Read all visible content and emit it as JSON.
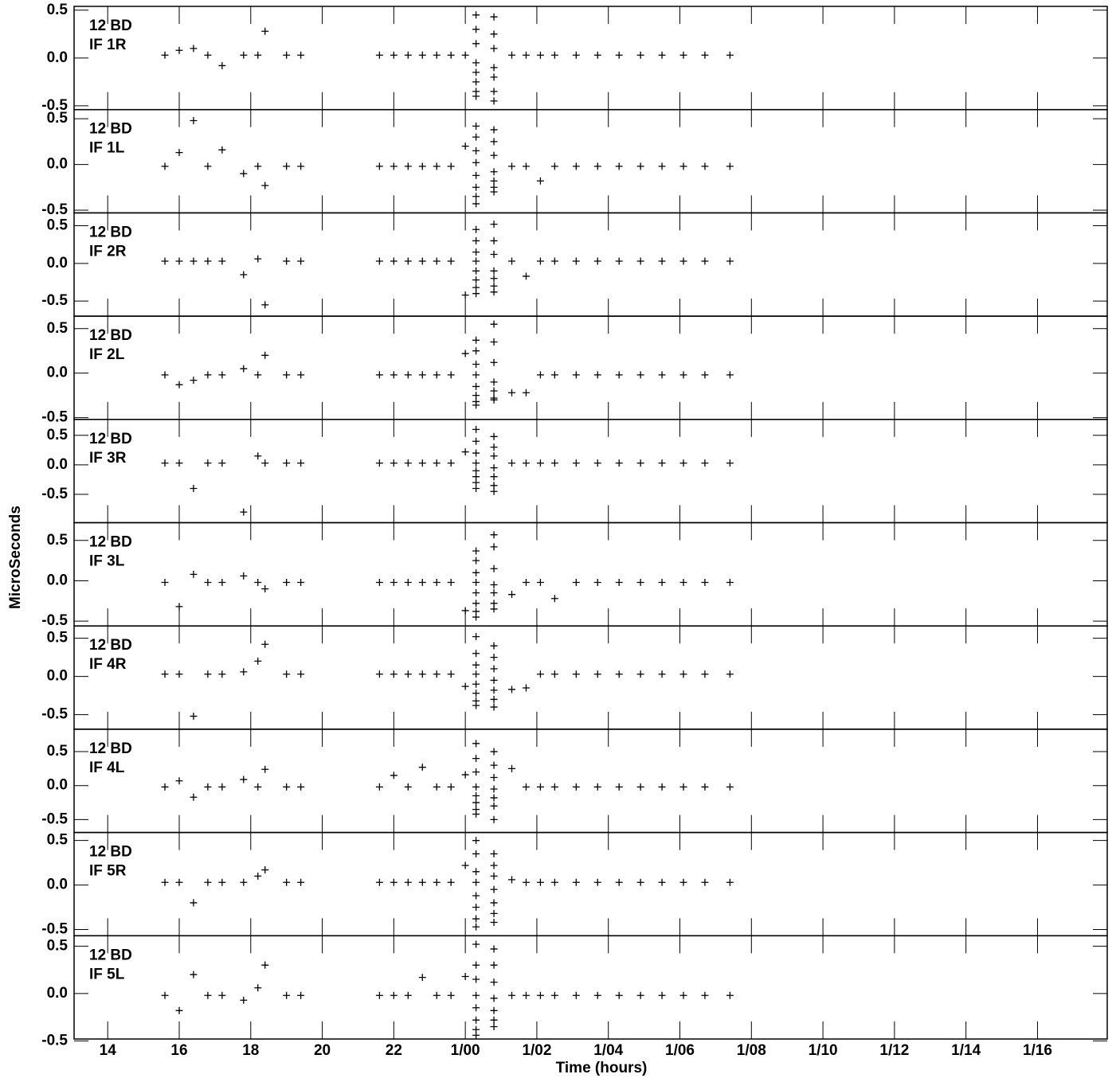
{
  "chart_data": {
    "type": "scatter",
    "xlabel": "Time (hours)",
    "ylabel": "MicroSeconds",
    "color": "#000000",
    "xlim": [
      13.06,
      41.95
    ],
    "xticks": [
      {
        "value": 14,
        "label": "14"
      },
      {
        "value": 16,
        "label": "16"
      },
      {
        "value": 18,
        "label": "18"
      },
      {
        "value": 20,
        "label": "20"
      },
      {
        "value": 22,
        "label": "22"
      },
      {
        "value": 24,
        "label": "1/00"
      },
      {
        "value": 26,
        "label": "1/02"
      },
      {
        "value": 28,
        "label": "1/04"
      },
      {
        "value": 30,
        "label": "1/06"
      },
      {
        "value": 32,
        "label": "1/08"
      },
      {
        "value": 34,
        "label": "1/10"
      },
      {
        "value": 36,
        "label": "1/12"
      },
      {
        "value": 38,
        "label": "1/14"
      },
      {
        "value": 40,
        "label": "1/16"
      }
    ],
    "panels": [
      {
        "title": "12 BD",
        "subtitle": "IF 1R",
        "ylim": [
          -0.54,
          0.54
        ],
        "yticks": [
          -0.5,
          {
            "value": 0,
            "label": "0.0"
          },
          0.5
        ],
        "x": [
          15.6,
          16.0,
          16.4,
          16.8,
          17.2,
          17.8,
          18.2,
          18.4,
          19.0,
          19.4,
          21.6,
          22.0,
          22.4,
          22.8,
          23.2,
          23.6,
          24.0,
          24.3,
          24.3,
          24.3,
          24.3,
          24.3,
          24.3,
          24.3,
          24.3,
          24.8,
          24.8,
          24.8,
          24.8,
          24.8,
          24.8,
          24.8,
          25.3,
          25.7,
          26.1,
          26.5,
          27.1,
          27.7,
          28.3,
          28.9,
          29.5,
          30.1,
          30.7,
          31.4
        ],
        "values": [
          0.03,
          0.08,
          0.1,
          0.03,
          -0.08,
          0.03,
          0.03,
          0.28,
          0.03,
          0.03,
          0.03,
          0.03,
          0.03,
          0.03,
          0.03,
          0.03,
          0.03,
          0.45,
          0.3,
          0.15,
          -0.05,
          -0.15,
          -0.25,
          -0.35,
          -0.4,
          0.43,
          0.25,
          0.1,
          -0.1,
          -0.2,
          -0.35,
          -0.45,
          0.03,
          0.03,
          0.03,
          0.03,
          0.03,
          0.03,
          0.03,
          0.03,
          0.03,
          0.03,
          0.03,
          0.03
        ]
      },
      {
        "title": "12 BD",
        "subtitle": "IF 1L",
        "ylim": [
          -0.53,
          0.6
        ],
        "yticks": [
          -0.5,
          {
            "value": 0,
            "label": "0.0"
          },
          0.5
        ],
        "x": [
          15.6,
          16.0,
          16.4,
          16.8,
          17.2,
          17.8,
          18.2,
          18.4,
          19.0,
          19.4,
          21.6,
          22.0,
          22.4,
          22.8,
          23.2,
          23.6,
          24.0,
          24.3,
          24.3,
          24.3,
          24.3,
          24.3,
          24.3,
          24.3,
          24.3,
          24.8,
          24.8,
          24.8,
          24.8,
          24.8,
          24.8,
          24.8,
          25.3,
          25.7,
          26.1,
          26.5,
          27.1,
          27.7,
          28.3,
          28.9,
          29.5,
          30.1,
          30.7,
          31.4
        ],
        "values": [
          -0.02,
          0.13,
          0.48,
          -0.02,
          0.16,
          -0.1,
          -0.02,
          -0.23,
          -0.02,
          -0.02,
          -0.02,
          -0.02,
          -0.02,
          -0.02,
          -0.02,
          -0.02,
          0.2,
          0.42,
          0.3,
          0.15,
          0.02,
          -0.12,
          -0.25,
          -0.35,
          -0.43,
          0.38,
          0.25,
          0.1,
          -0.08,
          -0.18,
          -0.25,
          -0.3,
          -0.02,
          -0.02,
          -0.18,
          -0.02,
          -0.02,
          -0.02,
          -0.02,
          -0.02,
          -0.02,
          -0.02,
          -0.02,
          -0.02
        ]
      },
      {
        "title": "12 BD",
        "subtitle": "IF 2R",
        "ylim": [
          -0.7,
          0.67
        ],
        "yticks": [
          -0.5,
          {
            "value": 0,
            "label": "0.0"
          },
          0.5
        ],
        "x": [
          15.6,
          16.0,
          16.4,
          16.8,
          17.2,
          17.8,
          18.2,
          18.4,
          19.0,
          19.4,
          21.6,
          22.0,
          22.4,
          22.8,
          23.2,
          23.6,
          24.0,
          24.3,
          24.3,
          24.3,
          24.3,
          24.3,
          24.3,
          24.3,
          24.3,
          24.8,
          24.8,
          24.8,
          24.8,
          24.8,
          24.8,
          24.8,
          25.3,
          25.7,
          26.1,
          26.5,
          27.1,
          27.7,
          28.3,
          28.9,
          29.5,
          30.1,
          30.7,
          31.4
        ],
        "values": [
          0.03,
          0.03,
          0.03,
          0.03,
          0.03,
          -0.15,
          0.06,
          -0.55,
          0.03,
          0.03,
          0.03,
          0.03,
          0.03,
          0.03,
          0.03,
          0.03,
          -0.42,
          0.45,
          0.3,
          0.15,
          0.03,
          -0.1,
          -0.22,
          -0.32,
          -0.4,
          0.52,
          0.3,
          0.12,
          -0.1,
          -0.2,
          -0.3,
          -0.38,
          0.03,
          -0.17,
          0.03,
          0.03,
          0.03,
          0.03,
          0.03,
          0.03,
          0.03,
          0.03,
          0.03,
          0.03
        ]
      },
      {
        "title": "12 BD",
        "subtitle": "IF 2L",
        "ylim": [
          -0.52,
          0.64
        ],
        "yticks": [
          -0.5,
          {
            "value": 0,
            "label": "0.0"
          },
          0.5
        ],
        "x": [
          15.6,
          16.0,
          16.4,
          16.8,
          17.2,
          17.8,
          18.2,
          18.4,
          19.0,
          19.4,
          21.6,
          22.0,
          22.4,
          22.8,
          23.2,
          23.6,
          24.0,
          24.3,
          24.3,
          24.3,
          24.3,
          24.3,
          24.3,
          24.3,
          24.3,
          24.8,
          24.8,
          24.8,
          24.8,
          24.8,
          24.8,
          24.8,
          25.3,
          25.7,
          26.1,
          26.5,
          27.1,
          27.7,
          28.3,
          28.9,
          29.5,
          30.1,
          30.7,
          31.4
        ],
        "values": [
          -0.02,
          -0.13,
          -0.08,
          -0.02,
          -0.02,
          0.05,
          -0.02,
          0.2,
          -0.02,
          -0.02,
          -0.02,
          -0.02,
          -0.02,
          -0.02,
          -0.02,
          -0.02,
          0.22,
          0.37,
          0.25,
          0.1,
          -0.02,
          -0.15,
          -0.25,
          -0.32,
          -0.36,
          0.55,
          0.35,
          0.12,
          -0.1,
          -0.2,
          -0.28,
          -0.3,
          -0.22,
          -0.22,
          -0.02,
          -0.02,
          -0.02,
          -0.02,
          -0.02,
          -0.02,
          -0.02,
          -0.02,
          -0.02,
          -0.02
        ]
      },
      {
        "title": "12 BD",
        "subtitle": "IF 3R",
        "ylim": [
          -0.98,
          0.77
        ],
        "yticks": [
          -0.5,
          {
            "value": 0,
            "label": "0.0"
          },
          0.5
        ],
        "x": [
          15.6,
          16.0,
          16.4,
          16.8,
          17.2,
          17.8,
          18.2,
          18.4,
          19.0,
          19.4,
          21.6,
          22.0,
          22.4,
          22.8,
          23.2,
          23.6,
          24.0,
          24.3,
          24.3,
          24.3,
          24.3,
          24.3,
          24.3,
          24.3,
          24.3,
          24.8,
          24.8,
          24.8,
          24.8,
          24.8,
          24.8,
          24.8,
          25.3,
          25.7,
          26.1,
          26.5,
          27.1,
          27.7,
          28.3,
          28.9,
          29.5,
          30.1,
          30.7,
          31.4
        ],
        "values": [
          0.03,
          0.03,
          -0.4,
          0.03,
          0.03,
          -0.8,
          0.15,
          0.03,
          0.03,
          0.03,
          0.03,
          0.03,
          0.03,
          0.03,
          0.03,
          0.03,
          0.22,
          0.6,
          0.4,
          0.2,
          0.03,
          -0.1,
          -0.2,
          -0.3,
          -0.4,
          0.48,
          0.3,
          0.15,
          -0.05,
          -0.2,
          -0.35,
          -0.45,
          0.03,
          0.03,
          0.03,
          0.03,
          0.03,
          0.03,
          0.03,
          0.03,
          0.03,
          0.03,
          0.03,
          0.03
        ]
      },
      {
        "title": "12 BD",
        "subtitle": "IF 3L",
        "ylim": [
          -0.56,
          0.72
        ],
        "yticks": [
          -0.5,
          {
            "value": 0,
            "label": "0.0"
          },
          0.5
        ],
        "x": [
          15.6,
          16.0,
          16.4,
          16.8,
          17.2,
          17.8,
          18.2,
          18.4,
          19.0,
          19.4,
          21.6,
          22.0,
          22.4,
          22.8,
          23.2,
          23.6,
          24.0,
          24.3,
          24.3,
          24.3,
          24.3,
          24.3,
          24.3,
          24.3,
          24.3,
          24.8,
          24.8,
          24.8,
          24.8,
          24.8,
          24.8,
          24.8,
          25.3,
          25.7,
          26.1,
          26.5,
          27.1,
          27.7,
          28.3,
          28.9,
          29.5,
          30.1,
          30.7,
          31.4
        ],
        "values": [
          -0.02,
          -0.32,
          0.08,
          -0.02,
          -0.02,
          0.06,
          -0.02,
          -0.1,
          -0.02,
          -0.02,
          -0.02,
          -0.02,
          -0.02,
          -0.02,
          -0.02,
          -0.02,
          -0.37,
          0.37,
          0.25,
          0.1,
          -0.02,
          -0.15,
          -0.28,
          -0.38,
          -0.45,
          0.57,
          0.42,
          0.15,
          -0.05,
          -0.15,
          -0.28,
          -0.35,
          -0.17,
          -0.02,
          -0.02,
          -0.22,
          -0.02,
          -0.02,
          -0.02,
          -0.02,
          -0.02,
          -0.02,
          -0.02,
          -0.02
        ]
      },
      {
        "title": "12 BD",
        "subtitle": "IF 4R",
        "ylim": [
          -0.69,
          0.66
        ],
        "yticks": [
          -0.5,
          {
            "value": 0,
            "label": "0.0"
          },
          0.5
        ],
        "x": [
          15.6,
          16.0,
          16.4,
          16.8,
          17.2,
          17.8,
          18.2,
          18.4,
          19.0,
          19.4,
          21.6,
          22.0,
          22.4,
          22.8,
          23.2,
          23.6,
          24.0,
          24.3,
          24.3,
          24.3,
          24.3,
          24.3,
          24.3,
          24.3,
          24.3,
          24.8,
          24.8,
          24.8,
          24.8,
          24.8,
          24.8,
          24.8,
          25.3,
          25.7,
          26.1,
          26.5,
          27.1,
          27.7,
          28.3,
          28.9,
          29.5,
          30.1,
          30.7,
          31.4
        ],
        "values": [
          0.03,
          0.03,
          -0.52,
          0.03,
          0.03,
          0.06,
          0.2,
          0.42,
          0.03,
          0.03,
          0.03,
          0.03,
          0.03,
          0.03,
          0.03,
          0.03,
          -0.13,
          0.52,
          0.3,
          0.15,
          0.03,
          -0.1,
          -0.22,
          -0.32,
          -0.38,
          0.4,
          0.25,
          0.1,
          -0.05,
          -0.18,
          -0.3,
          -0.4,
          -0.17,
          -0.15,
          0.03,
          0.03,
          0.03,
          0.03,
          0.03,
          0.03,
          0.03,
          0.03,
          0.03,
          0.03
        ]
      },
      {
        "title": "12 BD",
        "subtitle": "IF 4L",
        "ylim": [
          -0.69,
          0.83
        ],
        "yticks": [
          -0.5,
          {
            "value": 0,
            "label": "0.0"
          },
          0.5
        ],
        "x": [
          15.6,
          16.0,
          16.4,
          16.8,
          17.2,
          17.8,
          18.2,
          18.4,
          19.0,
          19.4,
          21.6,
          22.0,
          22.4,
          22.8,
          23.2,
          23.6,
          24.0,
          24.3,
          24.3,
          24.3,
          24.3,
          24.3,
          24.3,
          24.3,
          24.3,
          24.8,
          24.8,
          24.8,
          24.8,
          24.8,
          24.8,
          24.8,
          25.3,
          25.7,
          26.1,
          26.5,
          27.1,
          27.7,
          28.3,
          28.9,
          29.5,
          30.1,
          30.7,
          31.4
        ],
        "values": [
          -0.02,
          0.07,
          -0.17,
          -0.02,
          -0.02,
          0.09,
          -0.02,
          0.24,
          -0.02,
          -0.02,
          -0.02,
          0.15,
          -0.02,
          0.27,
          -0.02,
          -0.02,
          0.16,
          0.62,
          0.4,
          0.2,
          -0.02,
          -0.15,
          -0.25,
          -0.35,
          -0.42,
          0.5,
          0.3,
          0.12,
          -0.05,
          -0.18,
          -0.3,
          -0.5,
          0.25,
          -0.02,
          -0.02,
          -0.02,
          -0.02,
          -0.02,
          -0.02,
          -0.02,
          -0.02,
          -0.02,
          -0.02,
          -0.02
        ]
      },
      {
        "title": "12 BD",
        "subtitle": "IF 5R",
        "ylim": [
          -0.57,
          0.59
        ],
        "yticks": [
          -0.5,
          {
            "value": 0,
            "label": "0.0"
          },
          0.5
        ],
        "x": [
          15.6,
          16.0,
          16.4,
          16.8,
          17.2,
          17.8,
          18.2,
          18.4,
          19.0,
          19.4,
          21.6,
          22.0,
          22.4,
          22.8,
          23.2,
          23.6,
          24.0,
          24.3,
          24.3,
          24.3,
          24.3,
          24.3,
          24.3,
          24.3,
          24.3,
          24.8,
          24.8,
          24.8,
          24.8,
          24.8,
          24.8,
          24.8,
          25.3,
          25.7,
          26.1,
          26.5,
          27.1,
          27.7,
          28.3,
          28.9,
          29.5,
          30.1,
          30.7,
          31.4
        ],
        "values": [
          0.03,
          0.03,
          -0.2,
          0.03,
          0.03,
          0.03,
          0.1,
          0.17,
          0.03,
          0.03,
          0.03,
          0.03,
          0.03,
          0.03,
          0.03,
          0.03,
          0.22,
          0.5,
          0.35,
          0.15,
          0.03,
          -0.12,
          -0.25,
          -0.38,
          -0.47,
          0.35,
          0.22,
          0.1,
          -0.05,
          -0.2,
          -0.32,
          -0.42,
          0.06,
          0.03,
          0.03,
          0.03,
          0.03,
          0.03,
          0.03,
          0.03,
          0.03,
          0.03,
          0.03,
          0.03
        ]
      },
      {
        "title": "12 BD",
        "subtitle": "IF 5L",
        "ylim": [
          -0.48,
          0.61
        ],
        "yticks": [
          -0.5,
          {
            "value": 0,
            "label": "0.0"
          },
          0.5
        ],
        "x": [
          15.6,
          16.0,
          16.4,
          16.8,
          17.2,
          17.8,
          18.2,
          18.4,
          19.0,
          19.4,
          21.6,
          22.0,
          22.4,
          22.8,
          23.2,
          23.6,
          24.0,
          24.3,
          24.3,
          24.3,
          24.3,
          24.3,
          24.3,
          24.3,
          24.3,
          24.8,
          24.8,
          24.8,
          24.8,
          24.8,
          24.8,
          24.8,
          25.3,
          25.7,
          26.1,
          26.5,
          27.1,
          27.7,
          28.3,
          28.9,
          29.5,
          30.1,
          30.7,
          31.4
        ],
        "values": [
          -0.02,
          -0.18,
          0.2,
          -0.02,
          -0.02,
          -0.07,
          0.06,
          0.3,
          -0.02,
          -0.02,
          -0.02,
          -0.02,
          -0.02,
          0.17,
          -0.02,
          -0.02,
          0.18,
          0.52,
          0.3,
          0.15,
          -0.02,
          -0.15,
          -0.28,
          -0.38,
          -0.44,
          0.47,
          0.3,
          0.12,
          -0.05,
          -0.18,
          -0.28,
          -0.35,
          -0.02,
          -0.02,
          -0.02,
          -0.02,
          -0.02,
          -0.02,
          -0.02,
          -0.02,
          -0.02,
          -0.02,
          -0.02,
          -0.02
        ]
      }
    ]
  }
}
